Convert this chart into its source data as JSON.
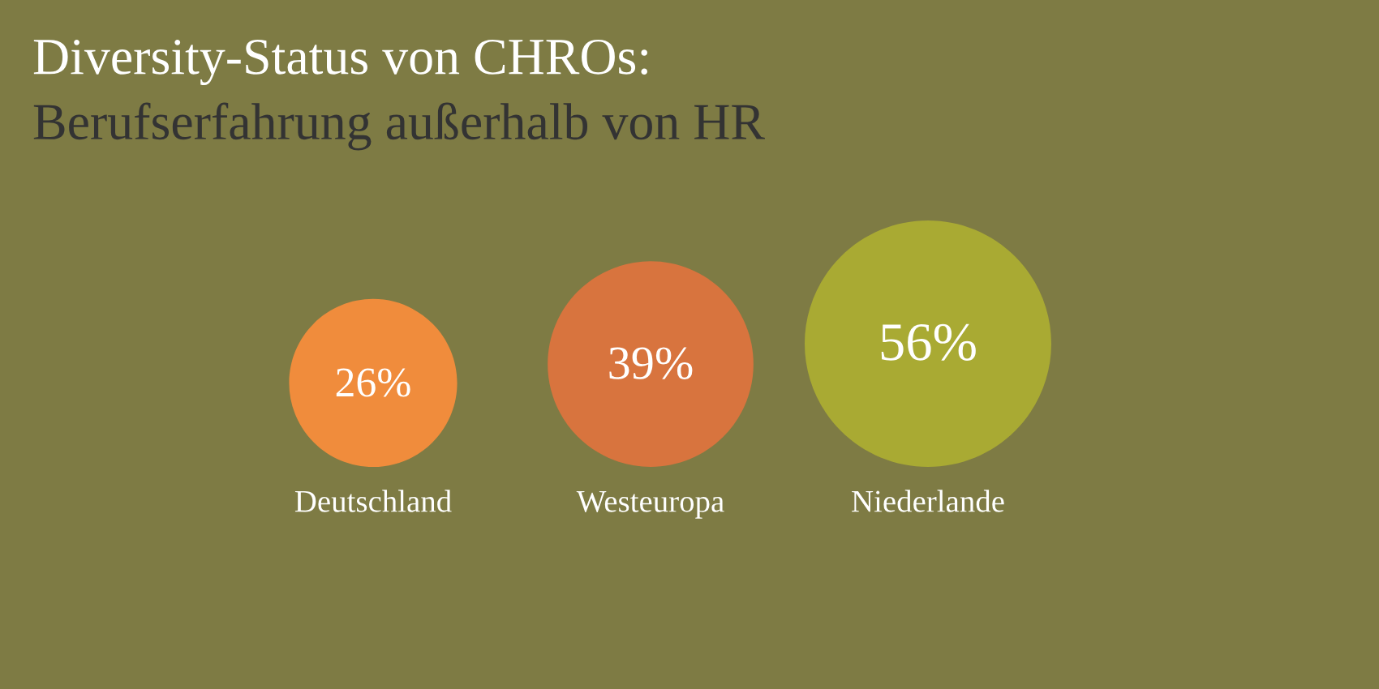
{
  "chart_data": {
    "type": "other",
    "title": "Diversity-Status von CHROs:",
    "subtitle": "Berufserfahrung außerhalb von HR",
    "categories": [
      "Deutschland",
      "Westeuropa",
      "Niederlande"
    ],
    "values": [
      26,
      39,
      56
    ],
    "value_labels": [
      "26%",
      "39%",
      "56%"
    ],
    "colors": [
      "#f08c3c",
      "#d8743e",
      "#a9aa33"
    ]
  }
}
